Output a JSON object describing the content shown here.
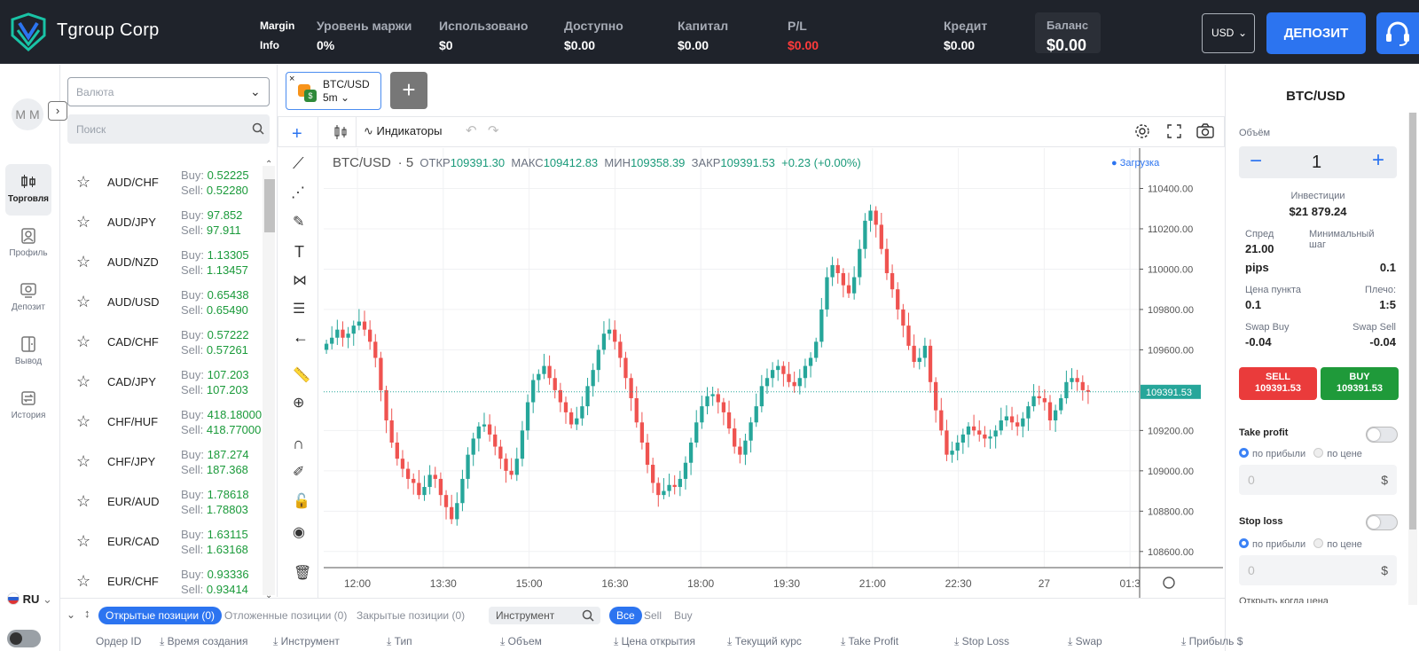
{
  "header": {
    "brand": "Tgroup Corp",
    "margin_info": [
      "Margin",
      "Info"
    ],
    "stats": [
      {
        "label": "Уровень маржи",
        "value": "0%"
      },
      {
        "label": "Использовано",
        "value": "$0"
      },
      {
        "label": "Доступно",
        "value": "$0.00"
      },
      {
        "label": "Капитал",
        "value": "$0.00"
      },
      {
        "label": "P/L",
        "value": "$0.00"
      },
      {
        "label": "Кредит",
        "value": "$0.00"
      },
      {
        "label": "Баланс",
        "value": "$0.00"
      }
    ],
    "currency": "USD",
    "deposit_label": "ДЕПОЗИТ",
    "pl_color": "#ff3b3b",
    "accent": "#2c74f0"
  },
  "user": {
    "initials": "M M"
  },
  "nav": [
    {
      "label": "Торговля",
      "icon": "candles-icon",
      "active": true
    },
    {
      "label": "Профиль",
      "icon": "profile-icon",
      "active": false
    },
    {
      "label": "Депозит",
      "icon": "deposit-icon",
      "active": false
    },
    {
      "label": "Вывод",
      "icon": "withdraw-icon",
      "active": false
    },
    {
      "label": "История",
      "icon": "history-icon",
      "active": false
    }
  ],
  "language": "RU",
  "instruments": {
    "filter_placeholder": "Валюта",
    "search_placeholder": "Поиск",
    "buy_prefix": "Buy:",
    "sell_prefix": "Sell:",
    "rows": [
      {
        "symbol": "AUD/CHF",
        "buy": "0.52225",
        "sell": "0.52280"
      },
      {
        "symbol": "AUD/JPY",
        "buy": "97.852",
        "sell": "97.911"
      },
      {
        "symbol": "AUD/NZD",
        "buy": "1.13305",
        "sell": "1.13457"
      },
      {
        "symbol": "AUD/USD",
        "buy": "0.65438",
        "sell": "0.65490"
      },
      {
        "symbol": "CAD/CHF",
        "buy": "0.57222",
        "sell": "0.57261"
      },
      {
        "symbol": "CAD/JPY",
        "buy": "107.203",
        "sell": "107.203"
      },
      {
        "symbol": "CHF/HUF",
        "buy": "418.18000",
        "sell": "418.77000"
      },
      {
        "symbol": "CHF/JPY",
        "buy": "187.274",
        "sell": "187.368"
      },
      {
        "symbol": "EUR/AUD",
        "buy": "1.78618",
        "sell": "1.78803"
      },
      {
        "symbol": "EUR/CAD",
        "buy": "1.63115",
        "sell": "1.63168"
      },
      {
        "symbol": "EUR/CHF",
        "buy": "0.93336",
        "sell": "0.93414"
      }
    ]
  },
  "chart_tab": {
    "symbol": "BTC/USD",
    "interval": "5m"
  },
  "toolbar": {
    "indicators": "Индикаторы"
  },
  "chart_data": {
    "type": "candlestick",
    "symbol": "BTC/USD",
    "interval": "5",
    "open_label": "ОТКР",
    "open": "109391.30",
    "high_label": "МАКС",
    "high": "109412.83",
    "low_label": "МИН",
    "low": "109358.39",
    "close_label": "ЗАКР",
    "close": "109391.53",
    "change": "+0.23 (+0.00%)",
    "loading": "Загрузка",
    "last_price": "109391.53",
    "y_ticks": [
      "110400.00",
      "110200.00",
      "110000.00",
      "109800.00",
      "109600.00",
      "109200.00",
      "109000.00",
      "108800.00",
      "108600.00"
    ],
    "y_tick_values": [
      110400,
      110200,
      110000,
      109800,
      109600,
      109200,
      109000,
      108800,
      108600
    ],
    "x_ticks": [
      "12:00",
      "13:30",
      "15:00",
      "16:30",
      "18:00",
      "19:30",
      "21:00",
      "22:30",
      "27",
      "01:3"
    ],
    "ylim": [
      108520,
      110600
    ],
    "up_color": "#26a69a",
    "down_color": "#ef5350",
    "close_series": [
      109630,
      109660,
      109700,
      109660,
      109680,
      109720,
      109740,
      109700,
      109640,
      109560,
      109400,
      109250,
      109140,
      109060,
      109010,
      108960,
      108940,
      108880,
      108920,
      108980,
      108960,
      108880,
      108820,
      108760,
      108840,
      108960,
      109080,
      109160,
      109220,
      109230,
      109180,
      109120,
      109060,
      109000,
      108980,
      109060,
      109200,
      109340,
      109450,
      109480,
      109520,
      109460,
      109400,
      109340,
      109290,
      109230,
      109260,
      109320,
      109420,
      109500,
      109600,
      109680,
      109700,
      109640,
      109560,
      109460,
      109360,
      109240,
      109140,
      109030,
      108940,
      108880,
      108900,
      108930,
      108920,
      108960,
      109040,
      109140,
      109240,
      109320,
      109370,
      109380,
      109340,
      109290,
      109210,
      109120,
      109080,
      109150,
      109240,
      109320,
      109420,
      109460,
      109500,
      109520,
      109480,
      109440,
      109420,
      109460,
      109520,
      109560,
      109640,
      109800,
      109960,
      110020,
      109980,
      109920,
      109880,
      109960,
      110100,
      110240,
      110290,
      110220,
      110100,
      109980,
      109900,
      109800,
      109720,
      109620,
      109540,
      109560,
      109620,
      109440,
      109300,
      109200,
      109080,
      109100,
      109140,
      109180,
      109220,
      109200,
      109180,
      109160,
      109170,
      109200,
      109250,
      109270,
      109240,
      109220,
      109260,
      109320,
      109370,
      109360,
      109340,
      109250,
      109300,
      109360,
      109440,
      109460,
      109440,
      109400,
      109391.53
    ]
  },
  "right_panel": {
    "symbol": "BTC/USD",
    "volume_label": "Объём",
    "volume": "1",
    "investment_label": "Инвестиции",
    "investment": "$21 879.24",
    "spread_label": "Спред",
    "spread": "21.00",
    "spread_unit": "pips",
    "min_step_label": "Минимальный шаг",
    "min_step": "0.1",
    "point_price_label": "Цена пункта",
    "point_price": "0.1",
    "leverage_label": "Плечо:",
    "leverage": "1:5",
    "swap_buy_label": "Swap Buy",
    "swap_buy": "-0.04",
    "swap_sell_label": "Swap Sell",
    "swap_sell": "-0.04",
    "sell_label": "SELL",
    "sell_price": "109391.53",
    "buy_label": "BUY",
    "buy_price": "109391.53",
    "take_profit_label": "Take profit",
    "stop_loss_label": "Stop loss",
    "by_profit": "по прибыли",
    "by_price": "по цене",
    "amount_placeholder": "0",
    "currency_sign": "$",
    "cutoff_text": "Открыть когда цена"
  },
  "bottom": {
    "tabs": [
      "Открытые позиции (0)",
      "Отложенные позиции (0)",
      "Закрытые позиции (0)"
    ],
    "instrument_placeholder": "Инструмент",
    "filters": [
      "Все",
      "Sell",
      "Buy"
    ],
    "columns": [
      "Ордер ID",
      "Время создания",
      "Инструмент",
      "Тип",
      "Объем",
      "Цена открытия",
      "Текущий курс",
      "Take Profit",
      "Stop Loss",
      "Swap",
      "Прибыль $"
    ]
  }
}
